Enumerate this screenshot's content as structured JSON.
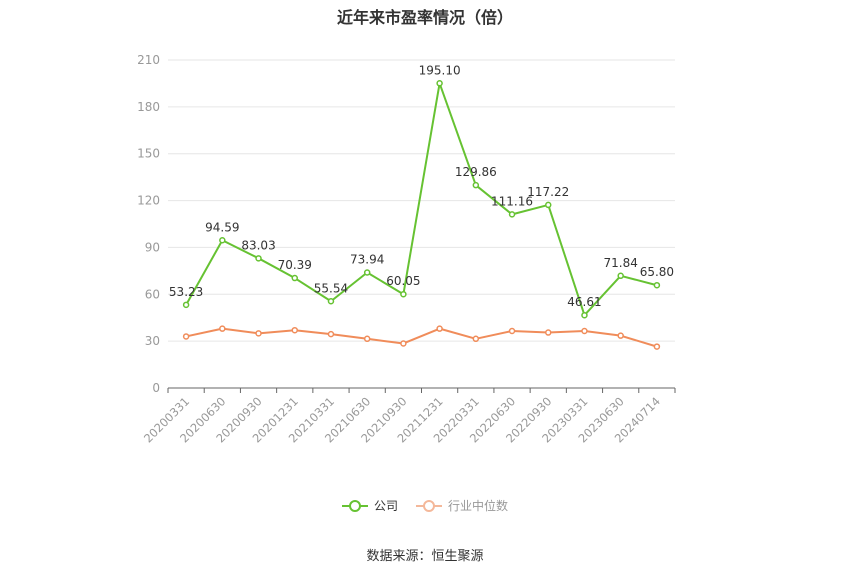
{
  "title": "近年来市盈率情况（倍）",
  "source": "数据来源：恒生聚源",
  "chart_data": {
    "type": "line",
    "categories": [
      "20200331",
      "20200630",
      "20200930",
      "20201231",
      "20210331",
      "20210630",
      "20210930",
      "20211231",
      "20220331",
      "20220630",
      "20220930",
      "20230331",
      "20230630",
      "20240714"
    ],
    "ylim": [
      0,
      210
    ],
    "yticks": [
      0,
      30,
      60,
      90,
      120,
      150,
      180,
      210
    ],
    "grid": true,
    "legend_position": "bottom",
    "series": [
      {
        "name": "公司",
        "color": "#66c232",
        "values": [
          53.23,
          94.59,
          83.03,
          70.39,
          55.54,
          73.94,
          60.05,
          195.1,
          129.86,
          111.16,
          117.22,
          46.61,
          71.84,
          65.8
        ],
        "labels": [
          "53.23",
          "94.59",
          "83.03",
          "70.39",
          "55.54",
          "73.94",
          "60.05",
          "195.10",
          "129.86",
          "111.16",
          "117.22",
          "46.61",
          "71.84",
          "65.80"
        ]
      },
      {
        "name": "行业中位数",
        "color": "#f08c5a",
        "values": [
          33.0,
          38.0,
          35.0,
          37.0,
          34.5,
          31.5,
          28.5,
          38.0,
          31.5,
          36.5,
          35.5,
          36.5,
          33.5,
          26.5
        ]
      }
    ]
  }
}
